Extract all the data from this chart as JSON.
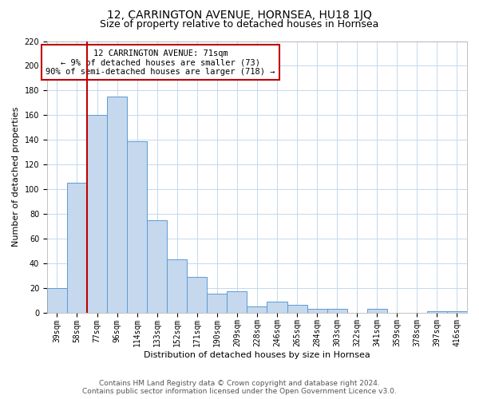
{
  "title": "12, CARRINGTON AVENUE, HORNSEA, HU18 1JQ",
  "subtitle": "Size of property relative to detached houses in Hornsea",
  "xlabel": "Distribution of detached houses by size in Hornsea",
  "ylabel": "Number of detached properties",
  "categories": [
    "39sqm",
    "58sqm",
    "77sqm",
    "96sqm",
    "114sqm",
    "133sqm",
    "152sqm",
    "171sqm",
    "190sqm",
    "209sqm",
    "228sqm",
    "246sqm",
    "265sqm",
    "284sqm",
    "303sqm",
    "322sqm",
    "341sqm",
    "359sqm",
    "378sqm",
    "397sqm",
    "416sqm"
  ],
  "values": [
    20,
    105,
    160,
    175,
    139,
    75,
    43,
    29,
    15,
    17,
    5,
    9,
    6,
    3,
    3,
    0,
    3,
    0,
    0,
    1,
    1
  ],
  "bar_color": "#c5d8ed",
  "bar_edge_color": "#5b9bd5",
  "highlight_bar_index": 2,
  "vline_color": "#c00000",
  "annotation_text": "12 CARRINGTON AVENUE: 71sqm\n← 9% of detached houses are smaller (73)\n90% of semi-detached houses are larger (718) →",
  "annotation_box_edge_color": "#c00000",
  "annotation_box_face_color": "#ffffff",
  "ylim": [
    0,
    220
  ],
  "yticks": [
    0,
    20,
    40,
    60,
    80,
    100,
    120,
    140,
    160,
    180,
    200,
    220
  ],
  "footer_line1": "Contains HM Land Registry data © Crown copyright and database right 2024.",
  "footer_line2": "Contains public sector information licensed under the Open Government Licence v3.0.",
  "background_color": "#ffffff",
  "grid_color": "#c5d8ed",
  "title_fontsize": 10,
  "subtitle_fontsize": 9,
  "axis_label_fontsize": 8,
  "tick_fontsize": 7,
  "annotation_fontsize": 7.5,
  "footer_fontsize": 6.5
}
